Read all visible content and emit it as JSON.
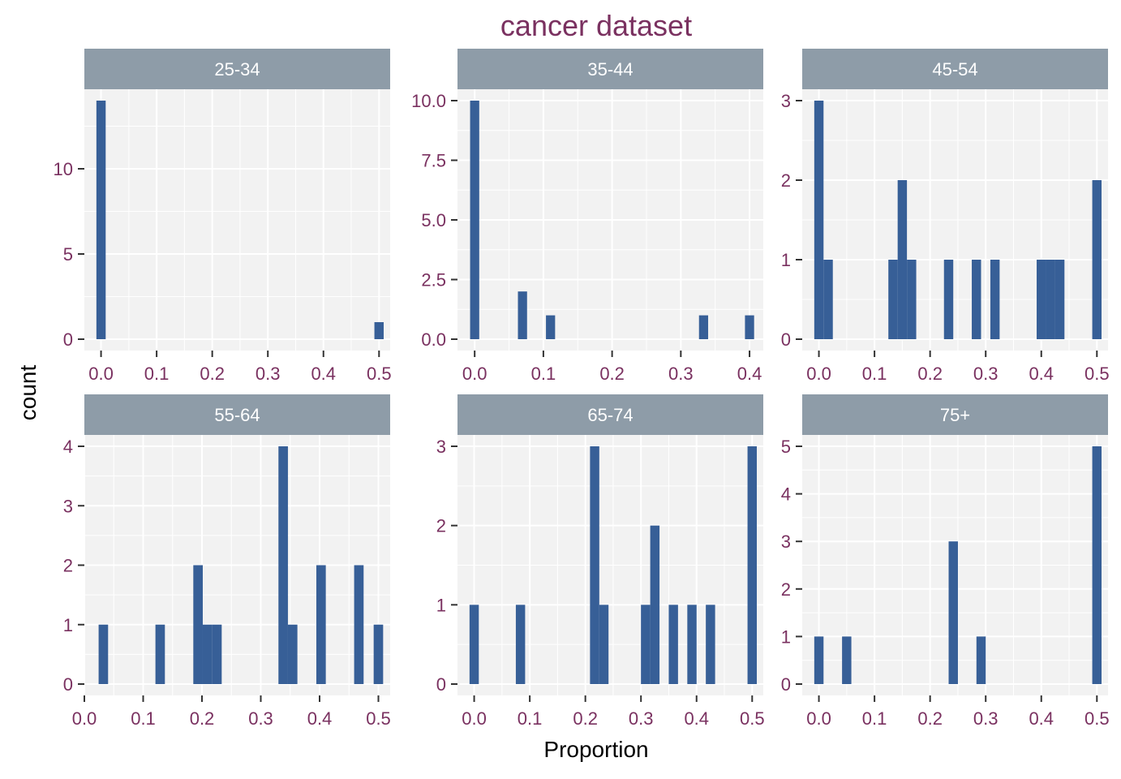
{
  "chart_data": {
    "type": "bar",
    "title": "cancer dataset",
    "xlabel": "Proportion",
    "ylabel": "count",
    "grid": true,
    "colors": {
      "bar": "#375f97",
      "panel_bg": "#f2f2f2",
      "grid": "#ffffff",
      "strip_bg": "#8e9ca8",
      "strip_text": "#ffffff",
      "tick_text": "#7a3160",
      "title": "#7a3160",
      "axis_title": "#000000",
      "tick_mark": "#333333"
    },
    "facets": [
      {
        "label": "25-34",
        "xlim": [
          -0.03,
          0.52
        ],
        "ylim": [
          0,
          14
        ],
        "xticks": [
          0.0,
          0.1,
          0.2,
          0.3,
          0.4,
          0.5
        ],
        "xtick_labels": [
          "0.0",
          "0.1",
          "0.2",
          "0.3",
          "0.4",
          "0.5"
        ],
        "yticks": [
          0,
          5,
          10
        ],
        "ytick_labels": [
          "0",
          "5",
          "10"
        ],
        "bin_width": 0.0167,
        "bins": [
          {
            "x": 0.0,
            "count": 14
          },
          {
            "x": 0.5,
            "count": 1
          }
        ]
      },
      {
        "label": "35-44",
        "xlim": [
          -0.025,
          0.42
        ],
        "ylim": [
          0,
          10
        ],
        "xticks": [
          0.0,
          0.1,
          0.2,
          0.3,
          0.4
        ],
        "xtick_labels": [
          "0.0",
          "0.1",
          "0.2",
          "0.3",
          "0.4"
        ],
        "yticks": [
          0,
          2.5,
          5,
          7.5,
          10
        ],
        "ytick_labels": [
          "0.0",
          "2.5",
          "5.0",
          "7.5",
          "10.0"
        ],
        "bin_width": 0.0133,
        "bins": [
          {
            "x": 0.0,
            "count": 10
          },
          {
            "x": 0.0696,
            "count": 2
          },
          {
            "x": 0.1104,
            "count": 1
          },
          {
            "x": 0.3331,
            "count": 1
          },
          {
            "x": 0.4,
            "count": 1
          }
        ]
      },
      {
        "label": "45-54",
        "xlim": [
          -0.03,
          0.52
        ],
        "ylim": [
          0,
          3
        ],
        "xticks": [
          0.0,
          0.1,
          0.2,
          0.3,
          0.4,
          0.5
        ],
        "xtick_labels": [
          "0.0",
          "0.1",
          "0.2",
          "0.3",
          "0.4",
          "0.5"
        ],
        "yticks": [
          0,
          1,
          2,
          3
        ],
        "ytick_labels": [
          "0",
          "1",
          "2",
          "3"
        ],
        "bin_width": 0.0167,
        "bins": [
          {
            "x": 0.0,
            "count": 3
          },
          {
            "x": 0.0167,
            "count": 1
          },
          {
            "x": 0.1333,
            "count": 1
          },
          {
            "x": 0.15,
            "count": 2
          },
          {
            "x": 0.1667,
            "count": 1
          },
          {
            "x": 0.2333,
            "count": 1
          },
          {
            "x": 0.2833,
            "count": 1
          },
          {
            "x": 0.3167,
            "count": 1
          },
          {
            "x": 0.4,
            "count": 1
          },
          {
            "x": 0.4167,
            "count": 1
          },
          {
            "x": 0.4333,
            "count": 1
          },
          {
            "x": 0.5,
            "count": 2
          }
        ]
      },
      {
        "label": "55-64",
        "xlim": [
          0.0,
          0.52
        ],
        "ylim": [
          0,
          4
        ],
        "xticks": [
          0.0,
          0.1,
          0.2,
          0.3,
          0.4,
          0.5
        ],
        "xtick_labels": [
          "0.0",
          "0.1",
          "0.2",
          "0.3",
          "0.4",
          "0.5"
        ],
        "yticks": [
          0,
          1,
          2,
          3,
          4
        ],
        "ytick_labels": [
          "0",
          "1",
          "2",
          "3",
          "4"
        ],
        "bin_width": 0.0161,
        "bins": [
          {
            "x": 0.0323,
            "count": 1
          },
          {
            "x": 0.1289,
            "count": 1
          },
          {
            "x": 0.1933,
            "count": 2
          },
          {
            "x": 0.2094,
            "count": 1
          },
          {
            "x": 0.2255,
            "count": 1
          },
          {
            "x": 0.3381,
            "count": 4
          },
          {
            "x": 0.3542,
            "count": 1
          },
          {
            "x": 0.4025,
            "count": 2
          },
          {
            "x": 0.4668,
            "count": 2
          },
          {
            "x": 0.5,
            "count": 1
          }
        ]
      },
      {
        "label": "65-74",
        "xlim": [
          -0.03,
          0.52
        ],
        "ylim": [
          0,
          3
        ],
        "xticks": [
          0.0,
          0.1,
          0.2,
          0.3,
          0.4,
          0.5
        ],
        "xtick_labels": [
          "0.0",
          "0.1",
          "0.2",
          "0.3",
          "0.4",
          "0.5"
        ],
        "yticks": [
          0,
          1,
          2,
          3
        ],
        "ytick_labels": [
          "0",
          "1",
          "2",
          "3"
        ],
        "bin_width": 0.0167,
        "bins": [
          {
            "x": 0.0,
            "count": 1
          },
          {
            "x": 0.0833,
            "count": 1
          },
          {
            "x": 0.2167,
            "count": 3
          },
          {
            "x": 0.2333,
            "count": 1
          },
          {
            "x": 0.3083,
            "count": 1
          },
          {
            "x": 0.325,
            "count": 2
          },
          {
            "x": 0.3583,
            "count": 1
          },
          {
            "x": 0.3917,
            "count": 1
          },
          {
            "x": 0.425,
            "count": 1
          },
          {
            "x": 0.5,
            "count": 3
          }
        ]
      },
      {
        "label": "75+",
        "xlim": [
          -0.03,
          0.52
        ],
        "ylim": [
          0,
          5
        ],
        "xticks": [
          0.0,
          0.1,
          0.2,
          0.3,
          0.4,
          0.5
        ],
        "xtick_labels": [
          "0.0",
          "0.1",
          "0.2",
          "0.3",
          "0.4",
          "0.5"
        ],
        "yticks": [
          0,
          1,
          2,
          3,
          4,
          5
        ],
        "ytick_labels": [
          "0",
          "1",
          "2",
          "3",
          "4",
          "5"
        ],
        "bin_width": 0.0167,
        "bins": [
          {
            "x": 0.0,
            "count": 1
          },
          {
            "x": 0.05,
            "count": 1
          },
          {
            "x": 0.2417,
            "count": 3
          },
          {
            "x": 0.2917,
            "count": 1
          },
          {
            "x": 0.5,
            "count": 5
          }
        ]
      }
    ]
  }
}
